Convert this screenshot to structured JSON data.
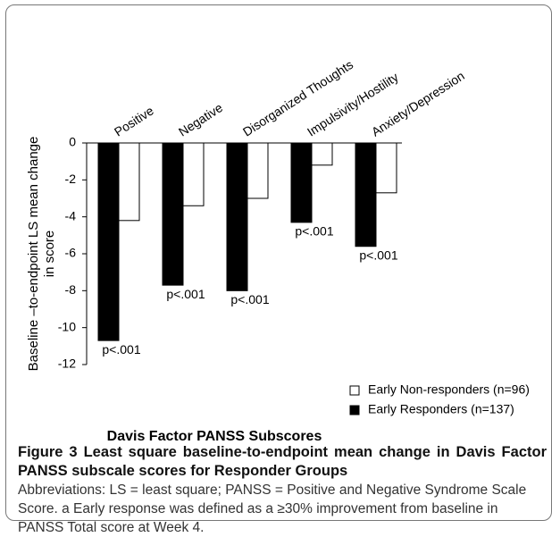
{
  "chart_data": {
    "type": "bar",
    "categories": [
      "Positive",
      "Negative",
      "Disorganized Thoughts",
      "Impulsivity/Hostility",
      "Anxiety/Depression"
    ],
    "series": [
      {
        "name": "Early Non-responders (n=96)",
        "color": "#ffffff",
        "values": [
          -4.2,
          -3.4,
          -3.0,
          -1.2,
          -2.7
        ]
      },
      {
        "name": "Early Responders (n=137)",
        "color": "#000000",
        "values": [
          -10.7,
          -7.7,
          -8.0,
          -4.3,
          -5.6
        ]
      }
    ],
    "annotations": [
      "p<.001",
      "p<.001",
      "p<.001",
      "p<.001",
      "p<.001"
    ],
    "x_label": "Davis Factor PANSS Subscores",
    "y_label": [
      "Baseline –to-endpoint LS mean change",
      "in score"
    ],
    "ylim": [
      -12,
      0
    ],
    "yticks": [
      0,
      -2,
      -4,
      -6,
      -8,
      -10,
      -12
    ],
    "legend": "lower right"
  },
  "caption": {
    "title": "Figure 3 Least square baseline-to-endpoint mean change in Davis Factor PANSS subscale scores for Responder Groups",
    "text": "Abbreviations: LS = least square; PANSS = Positive and Negative Syndrome Scale Score. a Early response was defined as a ≥30% improvement from baseline in PANSS Total score at Week 4."
  }
}
